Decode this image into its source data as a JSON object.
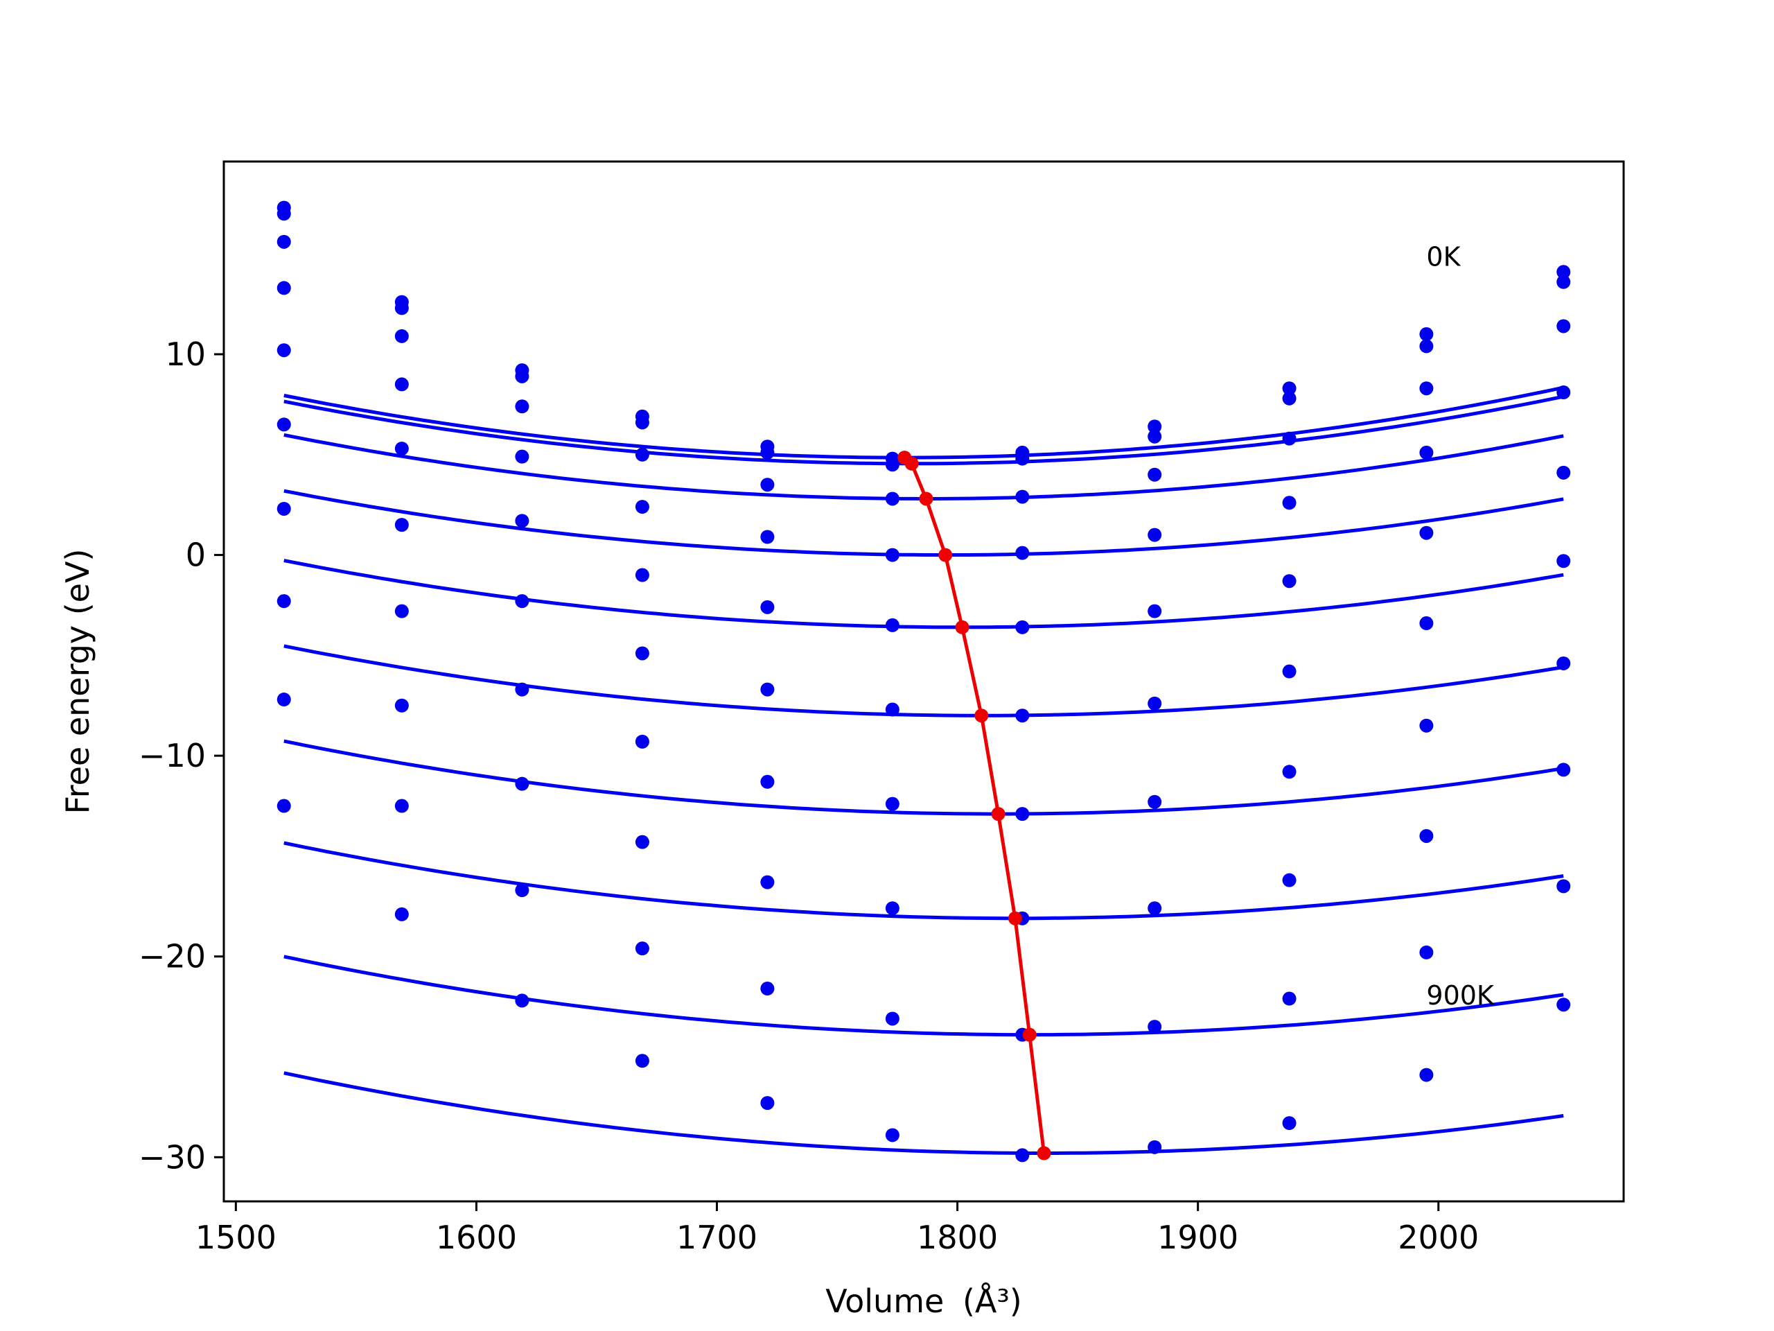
{
  "chart_data": {
    "type": "line",
    "xlabel": "Volume",
    "xlabel_unit": "(Å³)",
    "ylabel": "Free energy (eV)",
    "xlim": [
      1495,
      2077
    ],
    "ylim": [
      -32.2,
      19.6
    ],
    "x_ticks": [
      1500,
      1600,
      1700,
      1800,
      1900,
      2000
    ],
    "x_tick_labels": [
      "1500",
      "1600",
      "1700",
      "1800",
      "1900",
      "2000"
    ],
    "y_ticks": [
      -30,
      -20,
      -10,
      0,
      10
    ],
    "y_tick_labels": [
      "−30",
      "−20",
      "−10",
      "0",
      "10"
    ],
    "grid": false,
    "annotations": [
      {
        "text": "0K",
        "x": 1995,
        "y": 14.4
      },
      {
        "text": "900K",
        "x": 1995,
        "y": -22.4
      }
    ],
    "x_points": [
      1520,
      1569,
      1619,
      1669,
      1721,
      1773,
      1827,
      1882,
      1938,
      1995,
      2052
    ],
    "series_color": "#0000ee",
    "minimum_color": "#ee0000",
    "series": [
      {
        "values": [
          17.3,
          12.6,
          9.2,
          6.9,
          5.4,
          4.8,
          5.1,
          6.4,
          8.3,
          11.0,
          14.1
        ],
        "fit": {
          "a": 4.65e-05,
          "xmin": 1778,
          "ymin": 4.85
        }
      },
      {
        "values": [
          17.0,
          12.3,
          8.9,
          6.6,
          5.1,
          4.5,
          4.8,
          5.9,
          7.8,
          10.4,
          13.6
        ],
        "fit": {
          "a": 4.55e-05,
          "xmin": 1781,
          "ymin": 4.55
        }
      },
      {
        "values": [
          15.6,
          10.9,
          7.4,
          5.0,
          3.5,
          2.8,
          2.9,
          4.0,
          5.8,
          8.3,
          11.4
        ],
        "fit": {
          "a": 4.46e-05,
          "xmin": 1787,
          "ymin": 2.8
        }
      },
      {
        "values": [
          13.3,
          8.5,
          4.9,
          2.4,
          0.9,
          0.0,
          0.1,
          1.0,
          2.6,
          5.1,
          8.1
        ],
        "fit": {
          "a": 4.22e-05,
          "xmin": 1795,
          "ymin": 0.0
        }
      },
      {
        "values": [
          10.2,
          5.3,
          1.7,
          -1.0,
          -2.6,
          -3.5,
          -3.6,
          -2.8,
          -1.3,
          1.1,
          4.1
        ],
        "fit": {
          "a": 4.18e-05,
          "xmin": 1802,
          "ymin": -3.6
        }
      },
      {
        "values": [
          6.5,
          1.5,
          -2.3,
          -4.9,
          -6.7,
          -7.7,
          -8.0,
          -7.4,
          -5.8,
          -3.4,
          -0.3
        ],
        "fit": {
          "a": 4.12e-05,
          "xmin": 1810,
          "ymin": -8.0
        }
      },
      {
        "values": [
          2.3,
          -2.8,
          -6.7,
          -9.3,
          -11.3,
          -12.4,
          -12.9,
          -12.3,
          -10.8,
          -8.5,
          -5.4
        ],
        "fit": {
          "a": 4.11e-05,
          "xmin": 1817,
          "ymin": -12.9
        }
      },
      {
        "values": [
          -2.3,
          -7.5,
          -11.4,
          -14.3,
          -16.3,
          -17.6,
          -18.1,
          -17.6,
          -16.2,
          -14.0,
          -10.7
        ],
        "fit": {
          "a": 4.06e-05,
          "xmin": 1824,
          "ymin": -18.1
        }
      },
      {
        "values": [
          -7.2,
          -12.5,
          -16.7,
          -19.6,
          -21.6,
          -23.1,
          -23.9,
          -23.5,
          -22.1,
          -19.8,
          -16.5
        ],
        "fit": {
          "a": 4.05e-05,
          "xmin": 1830,
          "ymin": -23.9
        }
      },
      {
        "values": [
          -12.5,
          -17.9,
          -22.2,
          -25.2,
          -27.3,
          -28.9,
          -29.9,
          -29.5,
          -28.3,
          -25.9,
          -22.4
        ],
        "fit": {
          "a": 4e-05,
          "xmin": 1836,
          "ymin": -29.8
        }
      }
    ],
    "minima": {
      "x": [
        1778,
        1781,
        1787,
        1795,
        1802,
        1810,
        1817,
        1824,
        1830,
        1836
      ],
      "y": [
        4.85,
        4.55,
        2.8,
        0.0,
        -3.6,
        -8.0,
        -12.9,
        -18.1,
        -23.9,
        -29.8
      ]
    }
  }
}
